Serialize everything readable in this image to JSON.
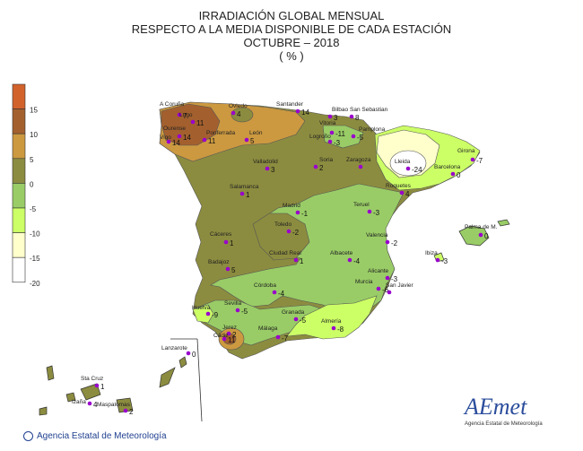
{
  "title": {
    "line1": "IRRADIACIÓN GLOBAL MENSUAL",
    "line2": "RESPECTO A LA MEDIA DISPONIBLE DE CADA ESTACIÓN",
    "line3": "OCTUBRE – 2018",
    "line4": "( % )"
  },
  "legend": {
    "levels": [
      "15",
      "10",
      "5",
      "0",
      "-5",
      "-10",
      "-15",
      "-20"
    ],
    "colors": [
      "#d2622c",
      "#a3602e",
      "#cc9940",
      "#8c8c40",
      "#99cc66",
      "#ccff66",
      "#ffffcc",
      "#ffffff"
    ]
  },
  "stations": [
    {
      "name": "A Coruña",
      "value": "7"
    },
    {
      "name": "Lugo",
      "value": "11"
    },
    {
      "name": "Ourense",
      "value": "14"
    },
    {
      "name": "Vigo",
      "value": "14"
    },
    {
      "name": "Oviedo",
      "value": "4"
    },
    {
      "name": "Santander",
      "value": "14"
    },
    {
      "name": "Bilbao",
      "value": "3"
    },
    {
      "name": "San Sebastian",
      "value": "8"
    },
    {
      "name": "Vitoria",
      "value": "-11"
    },
    {
      "name": "Pamplona",
      "value": "-5"
    },
    {
      "name": "Logroño",
      "value": "-3"
    },
    {
      "name": "Ponferrada",
      "value": "11"
    },
    {
      "name": "León",
      "value": "5"
    },
    {
      "name": "Valladolid",
      "value": "3"
    },
    {
      "name": "Soria",
      "value": "2"
    },
    {
      "name": "Zaragoza",
      "value": ""
    },
    {
      "name": "Lleida",
      "value": "-24"
    },
    {
      "name": "Girona",
      "value": "-7"
    },
    {
      "name": "Barcelona",
      "value": "0"
    },
    {
      "name": "Roquetes",
      "value": "4"
    },
    {
      "name": "Salamanca",
      "value": "1"
    },
    {
      "name": "Madrid",
      "value": "-1"
    },
    {
      "name": "Toledo",
      "value": "-2"
    },
    {
      "name": "Teruel",
      "value": "-3"
    },
    {
      "name": "Cáceres",
      "value": "1"
    },
    {
      "name": "Valencia",
      "value": "-2"
    },
    {
      "name": "Palma de M.",
      "value": "0"
    },
    {
      "name": "Ibiza",
      "value": "-3"
    },
    {
      "name": "Ciudad Real",
      "value": "1"
    },
    {
      "name": "Albacete",
      "value": "-4"
    },
    {
      "name": "Badajoz",
      "value": "5"
    },
    {
      "name": "Alicante",
      "value": "-3"
    },
    {
      "name": "Murcia",
      "value": "-6"
    },
    {
      "name": "San Javier",
      "value": ""
    },
    {
      "name": "Córdoba",
      "value": "-4"
    },
    {
      "name": "Sevilla",
      "value": "-5"
    },
    {
      "name": "Huelva",
      "value": "-9"
    },
    {
      "name": "Granada",
      "value": "-5"
    },
    {
      "name": "Almería",
      "value": "-8"
    },
    {
      "name": "Jerez",
      "value": "2"
    },
    {
      "name": "Cádiz",
      "value": "11"
    },
    {
      "name": "Málaga",
      "value": "-7"
    },
    {
      "name": "Lanzarote",
      "value": "0"
    },
    {
      "name": "Sta Cruz",
      "value": "1"
    },
    {
      "name": "Izaña",
      "value": "4"
    },
    {
      "name": "Maspalomas",
      "value": "2"
    }
  ],
  "logo": {
    "text": "AEmet",
    "subtitle": "Agencia Estatal de Meteorología"
  },
  "footer": {
    "text": "Agencia Estatal de Meteorología"
  },
  "colors": {
    "background": "#ffffff",
    "station_marker": "#9900cc",
    "outline": "#333333"
  }
}
